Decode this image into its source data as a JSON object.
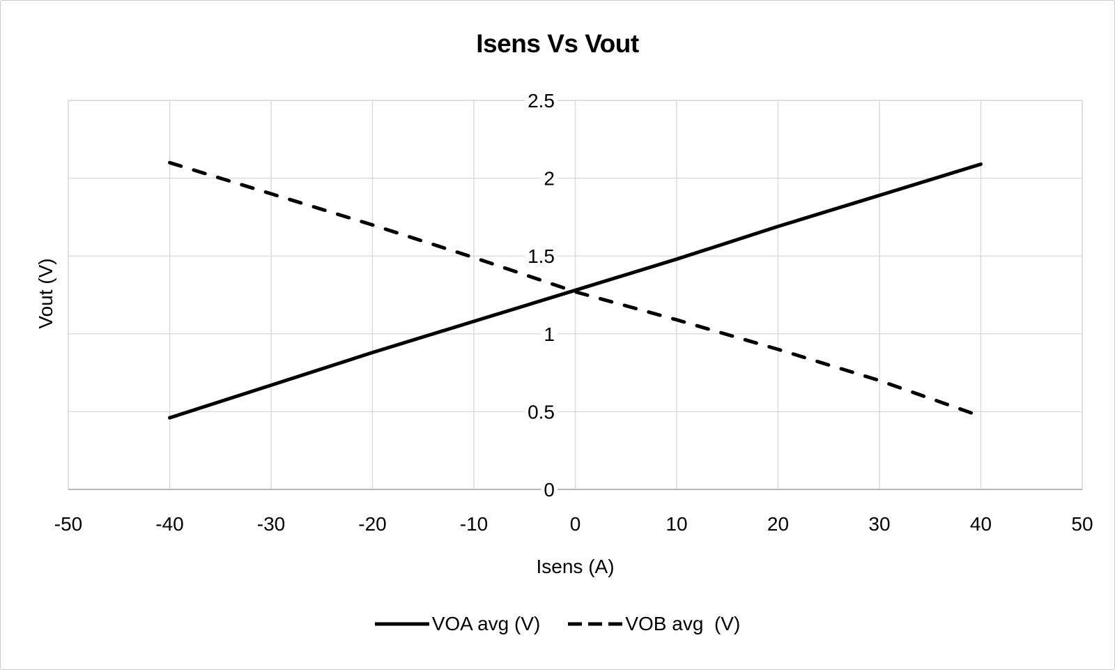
{
  "chart_data": {
    "type": "line",
    "title": "Isens Vs Vout",
    "xlabel": "Isens (A)",
    "ylabel": "Vout (V)",
    "xlim": [
      -50,
      50
    ],
    "ylim": [
      0,
      2.5
    ],
    "x_ticks": [
      -50,
      -40,
      -30,
      -20,
      -10,
      0,
      10,
      20,
      30,
      40,
      50
    ],
    "x_tick_labels": [
      "-50",
      "-40",
      "-30",
      "-20",
      "-10",
      "0",
      "10",
      "20",
      "30",
      "40",
      "50"
    ],
    "y_ticks": [
      0,
      0.5,
      1,
      1.5,
      2,
      2.5
    ],
    "y_tick_labels": [
      "0",
      "0.5",
      "1",
      "1.5",
      "2",
      "2.5"
    ],
    "grid": true,
    "legend_position": "bottom-center",
    "x": [
      -40,
      -30,
      -20,
      -10,
      0,
      10,
      20,
      30,
      40
    ],
    "series": [
      {
        "name": "VOA avg (V)",
        "line_style": "solid",
        "color": "#000000",
        "values": [
          0.46,
          0.67,
          0.88,
          1.08,
          1.28,
          1.48,
          1.69,
          1.89,
          2.09
        ]
      },
      {
        "name": "VOB avg  (V)",
        "line_style": "dashed",
        "color": "#000000",
        "values": [
          2.1,
          1.9,
          1.7,
          1.49,
          1.27,
          1.09,
          0.9,
          0.7,
          0.47
        ]
      }
    ]
  },
  "colors": {
    "background": "#ffffff",
    "canvas_border": "#c9c9c9",
    "gridline": "#d9d9d9",
    "plot_border": "#d9d9d9",
    "axis_line": "#a9a9a9",
    "text": "#000000"
  }
}
